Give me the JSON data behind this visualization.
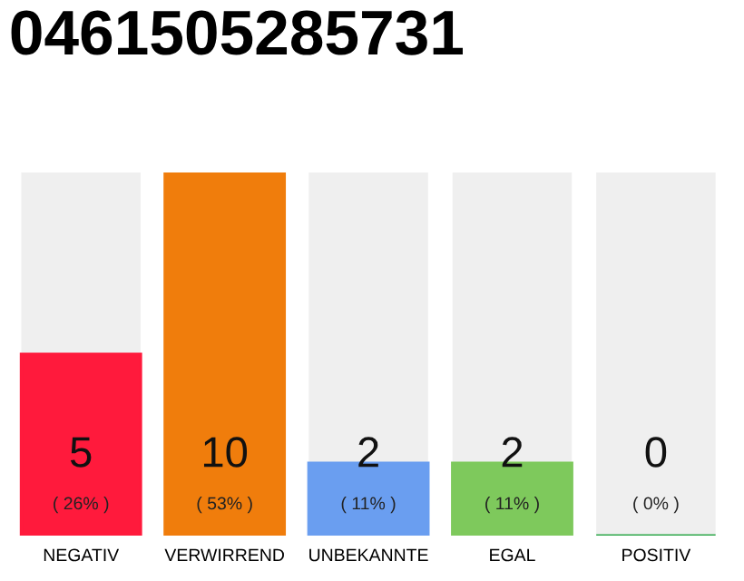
{
  "chart_data": {
    "type": "bar",
    "title": "0461505285731",
    "categories": [
      "NEGATIV",
      "VERWIRREND",
      "UNBEKANNTE",
      "EGAL",
      "POSITIV"
    ],
    "values": [
      5,
      10,
      2,
      2,
      0
    ],
    "colors": [
      "#ff1a3c",
      "#f07d0c",
      "#6a9ef0",
      "#7ec95c",
      "#2ea84a"
    ],
    "value_labels": [
      "5",
      "10",
      "2",
      "2",
      "0"
    ],
    "annotations": [
      "( 26% )",
      "( 53% )",
      "( 11% )",
      "( 11% )",
      "( 0% )"
    ],
    "ylim": [
      0,
      10
    ],
    "tick_labels": "x",
    "grid": false
  }
}
